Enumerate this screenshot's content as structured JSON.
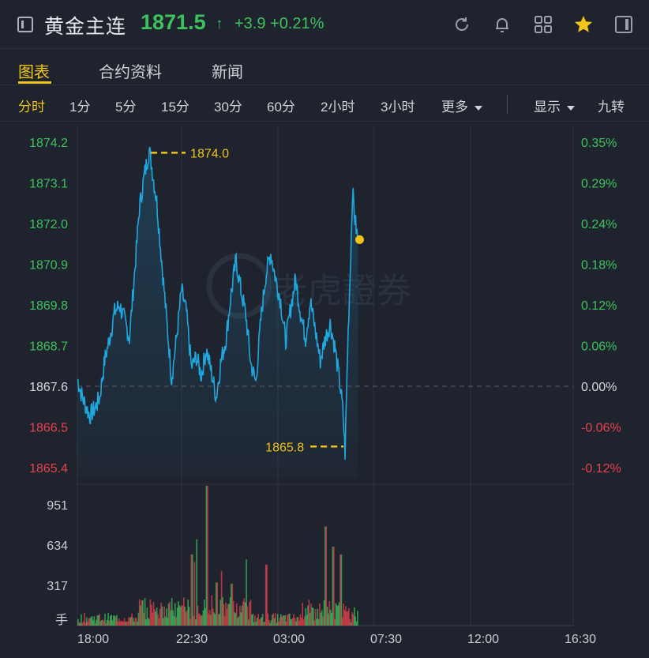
{
  "header": {
    "title": "黄金主连",
    "price": "1871.5",
    "arrow": "↑",
    "change": "+3.9",
    "change_pct": "+0.21%",
    "icons": [
      "back-icon",
      "refresh-icon",
      "bell-icon",
      "grid-icon",
      "star-icon",
      "sidebar-icon"
    ]
  },
  "tabs": [
    "图表",
    "合约资料",
    "新闻"
  ],
  "periods": [
    "分时",
    "1分",
    "5分",
    "15分",
    "30分",
    "60分",
    "2小时",
    "3小时",
    "更多",
    "显示",
    "九转"
  ],
  "watermark": "老虎證券",
  "colors": {
    "accent": "#f0c419",
    "up": "#3cc25e",
    "down": "#e8424c",
    "line": "#1fa8e0"
  },
  "chart_data": {
    "type": "line",
    "x_ticks": [
      "18:00",
      "22:30",
      "03:00",
      "07:30",
      "12:00",
      "16:30"
    ],
    "price_ticks_up": [
      "1874.2",
      "1873.1",
      "1872.0",
      "1870.9",
      "1869.8",
      "1868.7"
    ],
    "price_tick_base": "1867.6",
    "price_ticks_down": [
      "1866.5",
      "1865.4"
    ],
    "pct_ticks_up": [
      "0.35%",
      "0.29%",
      "0.24%",
      "0.18%",
      "0.12%",
      "0.06%"
    ],
    "pct_tick_base": "0.00%",
    "pct_ticks_down": [
      "-0.06%",
      "-0.12%"
    ],
    "ylim": [
      1865.4,
      1874.2
    ],
    "base_price": 1867.6,
    "high_label": "1874.0",
    "low_label": "1865.8",
    "high": 1874.0,
    "low": 1865.8,
    "last": 1871.5,
    "volume_ticks": [
      "951",
      "634",
      "317"
    ],
    "volume_unit": "手",
    "volume_max": 1100,
    "session_elapsed_fraction": 0.566,
    "keypoints": [
      [
        0.0,
        1867.8
      ],
      [
        0.01,
        1867.3
      ],
      [
        0.025,
        1866.8
      ],
      [
        0.035,
        1867.0
      ],
      [
        0.045,
        1867.3
      ],
      [
        0.055,
        1868.3
      ],
      [
        0.065,
        1868.9
      ],
      [
        0.075,
        1869.6
      ],
      [
        0.085,
        1869.8
      ],
      [
        0.095,
        1869.4
      ],
      [
        0.105,
        1868.9
      ],
      [
        0.115,
        1870.6
      ],
      [
        0.125,
        1872.4
      ],
      [
        0.135,
        1873.3
      ],
      [
        0.145,
        1874.0
      ],
      [
        0.16,
        1872.6
      ],
      [
        0.17,
        1871.0
      ],
      [
        0.18,
        1869.4
      ],
      [
        0.19,
        1867.8
      ],
      [
        0.2,
        1868.9
      ],
      [
        0.21,
        1870.2
      ],
      [
        0.22,
        1869.6
      ],
      [
        0.23,
        1868.1
      ],
      [
        0.24,
        1868.4
      ],
      [
        0.25,
        1867.9
      ],
      [
        0.26,
        1868.6
      ],
      [
        0.27,
        1868.0
      ],
      [
        0.28,
        1867.3
      ],
      [
        0.29,
        1868.3
      ],
      [
        0.3,
        1868.9
      ],
      [
        0.31,
        1870.1
      ],
      [
        0.32,
        1871.0
      ],
      [
        0.33,
        1870.2
      ],
      [
        0.34,
        1869.5
      ],
      [
        0.35,
        1868.2
      ],
      [
        0.36,
        1867.7
      ],
      [
        0.37,
        1869.4
      ],
      [
        0.38,
        1870.6
      ],
      [
        0.39,
        1871.2
      ],
      [
        0.4,
        1870.5
      ],
      [
        0.41,
        1869.9
      ],
      [
        0.42,
        1868.8
      ],
      [
        0.43,
        1869.7
      ],
      [
        0.44,
        1870.5
      ],
      [
        0.45,
        1869.6
      ],
      [
        0.46,
        1868.9
      ],
      [
        0.47,
        1869.9
      ],
      [
        0.48,
        1869.1
      ],
      [
        0.49,
        1868.3
      ],
      [
        0.5,
        1868.9
      ],
      [
        0.51,
        1869.3
      ],
      [
        0.52,
        1868.6
      ],
      [
        0.53,
        1867.6
      ],
      [
        0.535,
        1867.0
      ],
      [
        0.54,
        1865.8
      ],
      [
        0.545,
        1868.6
      ],
      [
        0.55,
        1870.6
      ],
      [
        0.555,
        1872.9
      ],
      [
        0.56,
        1872.1
      ],
      [
        0.566,
        1871.5
      ]
    ],
    "volume_spikes": [
      [
        0.26,
        1100
      ],
      [
        0.24,
        680
      ],
      [
        0.5,
        780
      ],
      [
        0.515,
        620
      ],
      [
        0.53,
        560
      ],
      [
        0.23,
        560
      ],
      [
        0.235,
        500
      ],
      [
        0.29,
        430
      ],
      [
        0.34,
        520
      ],
      [
        0.38,
        480
      ],
      [
        0.31,
        330
      ],
      [
        0.28,
        340
      ]
    ]
  }
}
